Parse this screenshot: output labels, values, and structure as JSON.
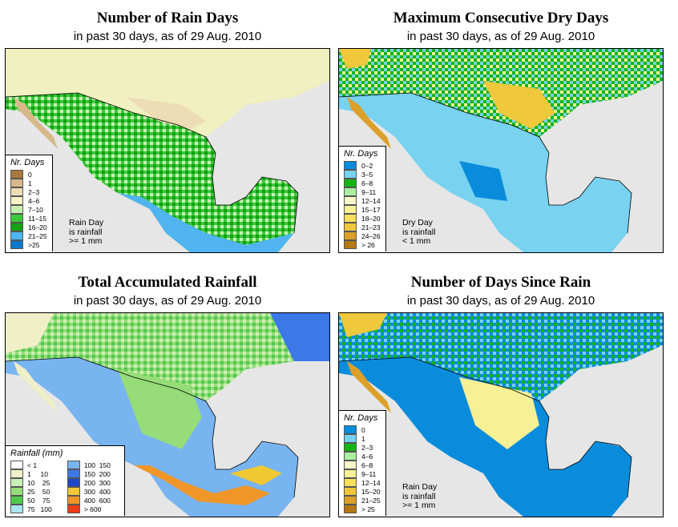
{
  "panels": [
    {
      "title": "Number of Rain Days",
      "subtitle": "in past 30 days, as of  29 Aug. 2010",
      "legend_title": "Nr. Days",
      "legend": [
        {
          "label": "0",
          "color": "#a8783c"
        },
        {
          "label": "1",
          "color": "#d6b88a"
        },
        {
          "label": "2–3",
          "color": "#eedcb4"
        },
        {
          "label": "4–6",
          "color": "#f8f4c6"
        },
        {
          "label": "7–10",
          "color": "#c8f0b4"
        },
        {
          "label": "11–15",
          "color": "#3cc83c"
        },
        {
          "label": "16–20",
          "color": "#14a014"
        },
        {
          "label": "21–25",
          "color": "#50b4f0"
        },
        {
          "label": ">25",
          "color": "#0a78c8"
        }
      ],
      "note": [
        "Rain Day",
        "is rainfall",
        ">= 1 mm"
      ]
    },
    {
      "title": "Maximum Consecutive Dry Days",
      "subtitle": "in past 30 days, as of  29 Aug. 2010",
      "legend_title": "Nr. Days",
      "legend": [
        {
          "label": "0–2",
          "color": "#0a8cdc"
        },
        {
          "label": "3–5",
          "color": "#78d2f0"
        },
        {
          "label": "6–8",
          "color": "#14b414"
        },
        {
          "label": "9–11",
          "color": "#aaf0a0"
        },
        {
          "label": "12–14",
          "color": "#f8f8c8"
        },
        {
          "label": "15–17",
          "color": "#f8f096"
        },
        {
          "label": "18–20",
          "color": "#f8e05a"
        },
        {
          "label": "21–23",
          "color": "#f0c83c"
        },
        {
          "label": "24–26",
          "color": "#dca028"
        },
        {
          "label": "> 26",
          "color": "#b47814"
        }
      ],
      "note": [
        "Dry Day",
        "is rainfall",
        "< 1 mm"
      ]
    },
    {
      "title": "Total Accumulated Rainfall",
      "subtitle": "in past 30 days, as of  29 Aug. 2010",
      "legend_title": "Rainfall (mm)",
      "legend": [
        {
          "label": "< 1",
          "color": "#ffffff"
        },
        {
          "label": "1     10",
          "color": "#f0f0c8"
        },
        {
          "label": "10    25",
          "color": "#c8f0b4"
        },
        {
          "label": "25    50",
          "color": "#96dc78"
        },
        {
          "label": "50    75",
          "color": "#50c850"
        },
        {
          "label": "75   100",
          "color": "#aae6f0"
        },
        {
          "label": "100  150",
          "color": "#78b4f0"
        },
        {
          "label": "150  200",
          "color": "#3c78e6"
        },
        {
          "label": "200  300",
          "color": "#1e46c8"
        },
        {
          "label": "300  400",
          "color": "#f0c832"
        },
        {
          "label": "400  600",
          "color": "#f09628"
        },
        {
          "label": "> 600",
          "color": "#f03c14"
        }
      ],
      "note": []
    },
    {
      "title": "Number of Days Since Rain",
      "subtitle": "in past 30 days, as of  29 Aug. 2010",
      "legend_title": "Nr. Days",
      "legend": [
        {
          "label": "0",
          "color": "#0a8cdc"
        },
        {
          "label": "1",
          "color": "#78d2f0"
        },
        {
          "label": "2–3",
          "color": "#14b414"
        },
        {
          "label": "4–6",
          "color": "#aaf0a0"
        },
        {
          "label": "6–8",
          "color": "#f8f8c8"
        },
        {
          "label": "9–11",
          "color": "#f8f096"
        },
        {
          "label": "12–14",
          "color": "#f8e05a"
        },
        {
          "label": "15–20",
          "color": "#f0c83c"
        },
        {
          "label": "21–25",
          "color": "#dca028"
        },
        {
          "label": "> 25",
          "color": "#b47814"
        }
      ],
      "note": [
        "Rain Day",
        "is rainfall",
        ">= 1 mm"
      ]
    }
  ]
}
